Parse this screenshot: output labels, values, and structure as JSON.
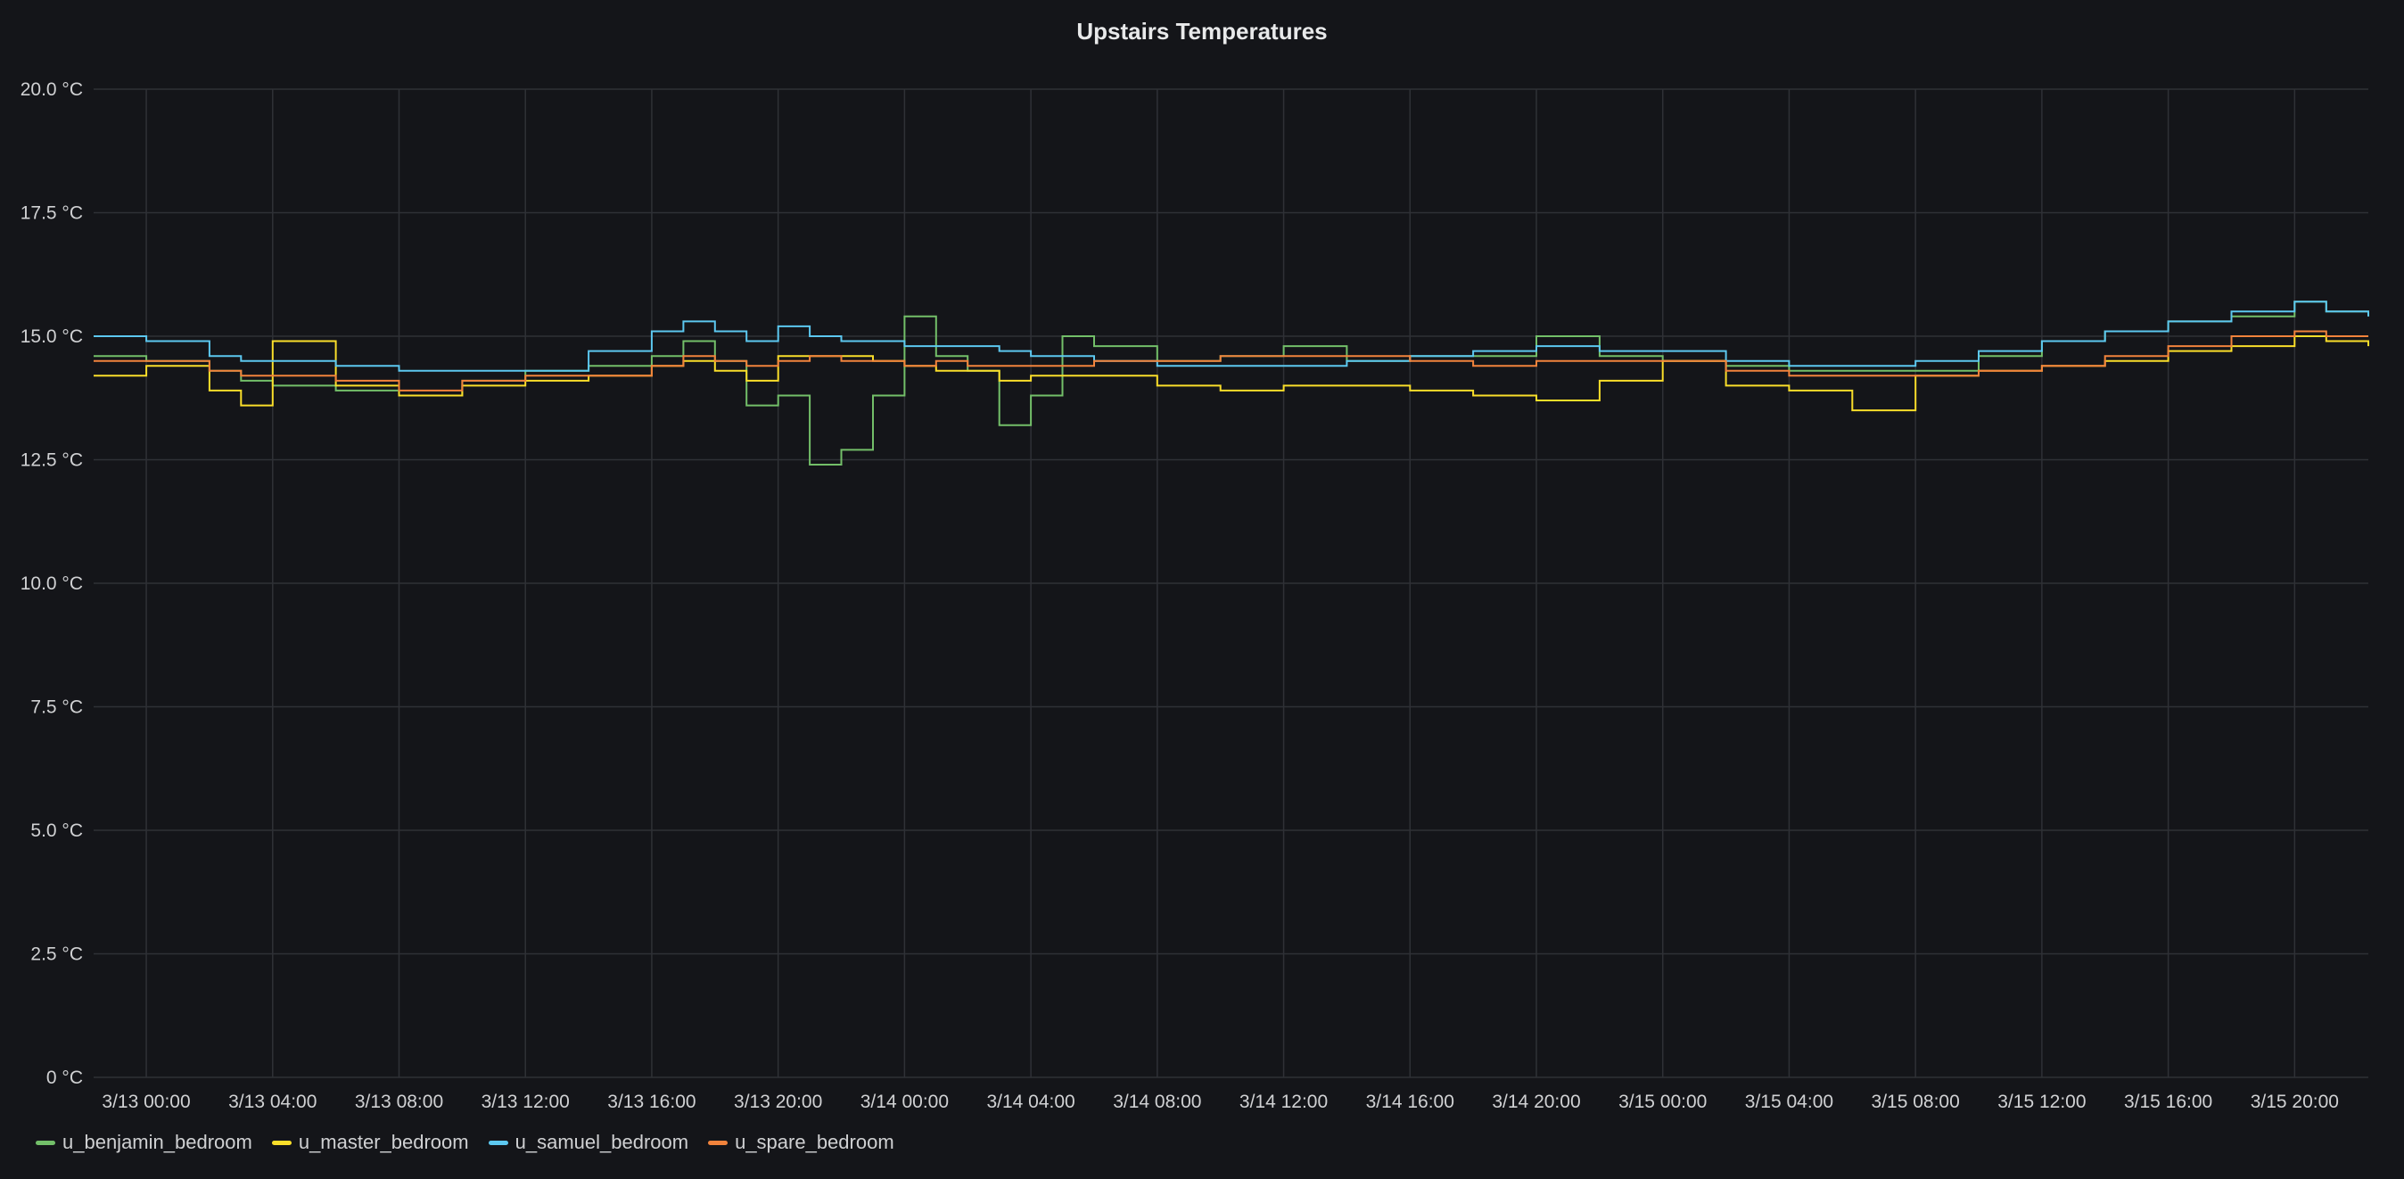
{
  "panel": {
    "title": "Upstairs Temperatures"
  },
  "chart_data": {
    "type": "line",
    "title": "Upstairs Temperatures",
    "xlabel": "",
    "ylabel": "",
    "y_unit": "°C",
    "ylim": [
      0,
      20
    ],
    "y_ticks": [
      "0 °C",
      "2.5 °C",
      "5.0 °C",
      "7.5 °C",
      "10.0 °C",
      "12.5 °C",
      "15.0 °C",
      "17.5 °C",
      "20.0 °C"
    ],
    "x_range": [
      "3/12 22:20",
      "3/15 22:20"
    ],
    "x_ticks": [
      "3/13 00:00",
      "3/13 04:00",
      "3/13 08:00",
      "3/13 12:00",
      "3/13 16:00",
      "3/13 20:00",
      "3/14 00:00",
      "3/14 04:00",
      "3/14 08:00",
      "3/14 12:00",
      "3/14 16:00",
      "3/14 20:00",
      "3/15 00:00",
      "3/15 04:00",
      "3/15 08:00",
      "3/15 12:00",
      "3/15 16:00",
      "3/15 20:00"
    ],
    "grid": true,
    "legend_position": "bottom-left",
    "x": [
      "3/12 22:20",
      "3/13 00:00",
      "3/13 02:00",
      "3/13 03:00",
      "3/13 04:00",
      "3/13 06:00",
      "3/13 08:00",
      "3/13 10:00",
      "3/13 12:00",
      "3/13 14:00",
      "3/13 16:00",
      "3/13 17:00",
      "3/13 18:00",
      "3/13 19:00",
      "3/13 20:00",
      "3/13 21:00",
      "3/13 22:00",
      "3/13 23:00",
      "3/14 00:00",
      "3/14 01:00",
      "3/14 02:00",
      "3/14 03:00",
      "3/14 04:00",
      "3/14 05:00",
      "3/14 06:00",
      "3/14 08:00",
      "3/14 10:00",
      "3/14 12:00",
      "3/14 14:00",
      "3/14 16:00",
      "3/14 18:00",
      "3/14 20:00",
      "3/14 22:00",
      "3/15 00:00",
      "3/15 02:00",
      "3/15 04:00",
      "3/15 06:00",
      "3/15 08:00",
      "3/15 10:00",
      "3/15 12:00",
      "3/15 14:00",
      "3/15 16:00",
      "3/15 18:00",
      "3/15 20:00",
      "3/15 21:00",
      "3/15 22:20"
    ],
    "series": [
      {
        "name": "u_benjamin_bedroom",
        "color": "#73bf69",
        "values": [
          14.6,
          14.5,
          14.3,
          14.1,
          14.0,
          13.9,
          13.8,
          14.1,
          14.3,
          14.4,
          14.6,
          14.9,
          14.5,
          13.6,
          13.8,
          12.4,
          12.7,
          13.8,
          15.4,
          14.6,
          14.3,
          13.2,
          13.8,
          15.0,
          14.8,
          14.5,
          14.6,
          14.8,
          14.5,
          14.6,
          14.6,
          15.0,
          14.6,
          14.5,
          14.4,
          14.3,
          14.3,
          14.3,
          14.6,
          14.9,
          15.1,
          15.3,
          15.4,
          15.7,
          15.5,
          15.4
        ]
      },
      {
        "name": "u_master_bedroom",
        "color": "#fade2a",
        "values": [
          14.2,
          14.4,
          13.9,
          13.6,
          14.9,
          14.0,
          13.8,
          14.0,
          14.1,
          14.2,
          14.4,
          14.5,
          14.3,
          14.1,
          14.6,
          14.6,
          14.6,
          14.5,
          14.4,
          14.3,
          14.3,
          14.1,
          14.2,
          14.2,
          14.2,
          14.0,
          13.9,
          14.0,
          14.0,
          13.9,
          13.8,
          13.7,
          14.1,
          14.5,
          14.0,
          13.9,
          13.5,
          14.2,
          14.3,
          14.4,
          14.5,
          14.7,
          14.8,
          15.0,
          14.9,
          14.8
        ]
      },
      {
        "name": "u_samuel_bedroom",
        "color": "#5cc8f0",
        "values": [
          15.0,
          14.9,
          14.6,
          14.5,
          14.5,
          14.4,
          14.3,
          14.3,
          14.3,
          14.7,
          15.1,
          15.3,
          15.1,
          14.9,
          15.2,
          15.0,
          14.9,
          14.9,
          14.8,
          14.8,
          14.8,
          14.7,
          14.6,
          14.6,
          14.5,
          14.4,
          14.4,
          14.4,
          14.5,
          14.6,
          14.7,
          14.8,
          14.7,
          14.7,
          14.5,
          14.4,
          14.4,
          14.5,
          14.7,
          14.9,
          15.1,
          15.3,
          15.5,
          15.7,
          15.5,
          15.4
        ]
      },
      {
        "name": "u_spare_bedroom",
        "color": "#f2833c",
        "values": [
          14.5,
          14.5,
          14.3,
          14.2,
          14.2,
          14.1,
          13.9,
          14.1,
          14.2,
          14.2,
          14.4,
          14.6,
          14.5,
          14.4,
          14.5,
          14.6,
          14.5,
          14.5,
          14.4,
          14.5,
          14.4,
          14.4,
          14.4,
          14.4,
          14.5,
          14.5,
          14.6,
          14.6,
          14.6,
          14.5,
          14.4,
          14.5,
          14.5,
          14.5,
          14.3,
          14.2,
          14.2,
          14.2,
          14.3,
          14.4,
          14.6,
          14.8,
          15.0,
          15.1,
          15.0,
          15.0
        ]
      }
    ]
  }
}
